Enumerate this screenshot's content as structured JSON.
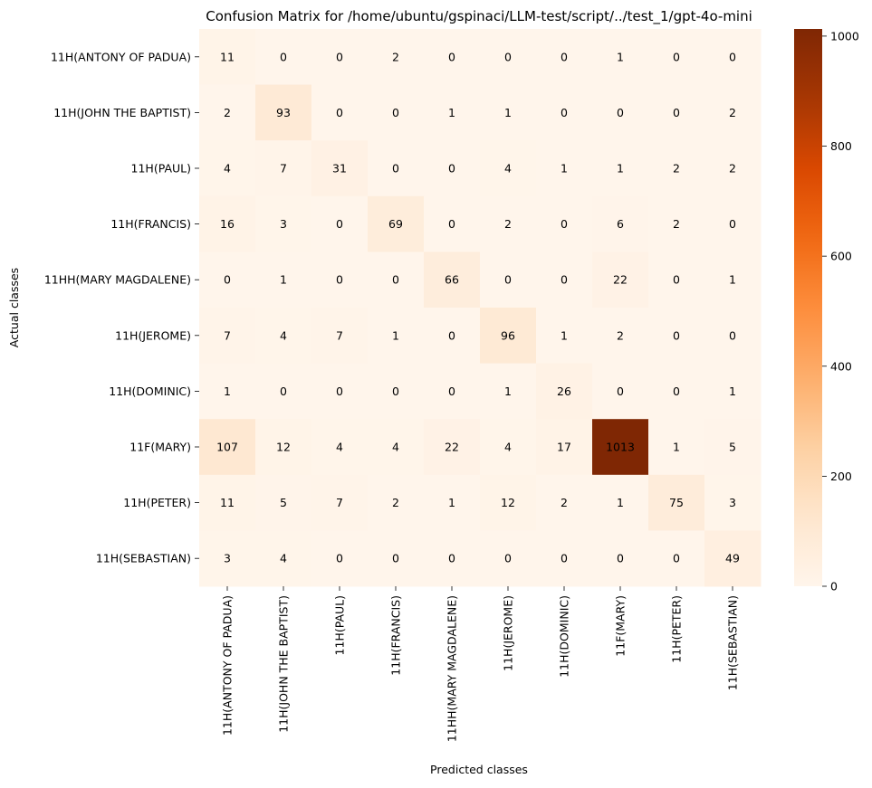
{
  "chart_data": {
    "type": "heatmap",
    "title": "Confusion Matrix for /home/ubuntu/gspinaci/LLM-test/script/../test_1/gpt-4o-mini",
    "xlabel": "Predicted classes",
    "ylabel": "Actual classes",
    "row_labels": [
      "11H(ANTONY OF PADUA)",
      "11H(JOHN THE BAPTIST)",
      "11H(PAUL)",
      "11H(FRANCIS)",
      "11HH(MARY MAGDALENE)",
      "11H(JEROME)",
      "11H(DOMINIC)",
      "11F(MARY)",
      "11H(PETER)",
      "11H(SEBASTIAN)"
    ],
    "col_labels": [
      "11H(ANTONY OF PADUA)",
      "11H(JOHN THE BAPTIST)",
      "11H(PAUL)",
      "11H(FRANCIS)",
      "11HH(MARY MAGDALENE)",
      "11H(JEROME)",
      "11H(DOMINIC)",
      "11F(MARY)",
      "11H(PETER)",
      "11H(SEBASTIAN)"
    ],
    "values": [
      [
        11,
        0,
        0,
        2,
        0,
        0,
        0,
        1,
        0,
        0
      ],
      [
        2,
        93,
        0,
        0,
        1,
        1,
        0,
        0,
        0,
        2
      ],
      [
        4,
        7,
        31,
        0,
        0,
        4,
        1,
        1,
        2,
        2
      ],
      [
        16,
        3,
        0,
        69,
        0,
        2,
        0,
        6,
        2,
        0
      ],
      [
        0,
        1,
        0,
        0,
        66,
        0,
        0,
        22,
        0,
        1
      ],
      [
        7,
        4,
        7,
        1,
        0,
        96,
        1,
        2,
        0,
        0
      ],
      [
        1,
        0,
        0,
        0,
        0,
        1,
        26,
        0,
        0,
        1
      ],
      [
        107,
        12,
        4,
        4,
        22,
        4,
        17,
        1013,
        1,
        5
      ],
      [
        11,
        5,
        7,
        2,
        1,
        12,
        2,
        1,
        75,
        3
      ],
      [
        3,
        4,
        0,
        0,
        0,
        0,
        0,
        0,
        0,
        49
      ]
    ],
    "colormap": "Oranges",
    "color_range": [
      0,
      1013
    ],
    "colorbar_ticks": [
      0,
      200,
      400,
      600,
      800,
      1000
    ],
    "colorbar_tick_labels": [
      "0",
      "200",
      "400",
      "600",
      "800",
      "1000"
    ],
    "annotations": true,
    "grid": false,
    "colors": {
      "low": "#fff5eb",
      "high": "#7f2704",
      "text_dark": "#000000",
      "text_light": "#ffffff"
    }
  }
}
